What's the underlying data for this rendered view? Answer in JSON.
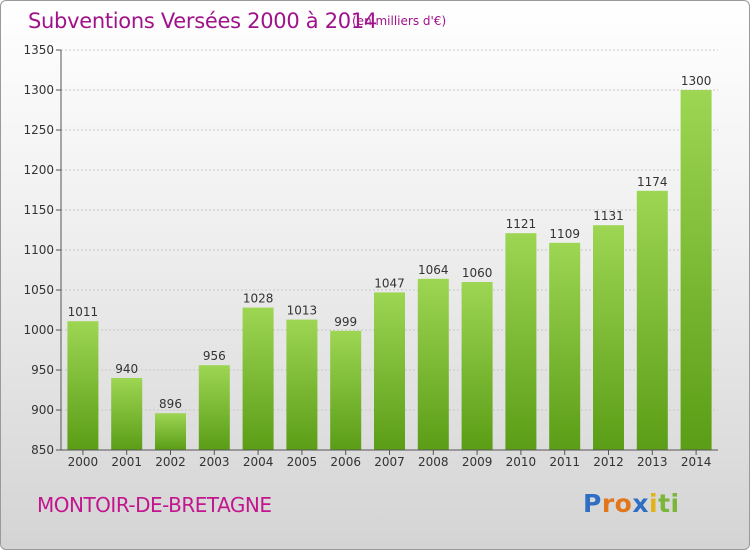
{
  "title": "Subventions Versées 2000 à 2014",
  "subtitle": "(en milliers d'€)",
  "commune": "MONTOIR-DE-BRETAGNE",
  "logo": {
    "letters": [
      "P",
      "r",
      "o",
      "x",
      "i",
      "t",
      "i"
    ],
    "colors": [
      "#2f6fc3",
      "#e2761c",
      "#e2761c",
      "#2f6fc3",
      "#e1b318",
      "#7bb63a",
      "#7bb63a"
    ]
  },
  "colors": {
    "bar_top": "#9dd653",
    "bar_bottom": "#5b9d16",
    "title": "#a0128a",
    "commune": "#c2158e"
  },
  "chart_data": {
    "type": "bar",
    "title": "Subventions Versées 2000 à 2014",
    "ylabel": "",
    "xlabel": "",
    "ylim": [
      850,
      1350
    ],
    "yticks": [
      850,
      900,
      950,
      1000,
      1050,
      1100,
      1150,
      1200,
      1250,
      1300,
      1350
    ],
    "grid": true,
    "categories": [
      "2000",
      "2001",
      "2002",
      "2003",
      "2004",
      "2005",
      "2006",
      "2007",
      "2008",
      "2009",
      "2010",
      "2011",
      "2012",
      "2013",
      "2014"
    ],
    "values": [
      1011,
      940,
      896,
      956,
      1028,
      1013,
      999,
      1047,
      1064,
      1060,
      1121,
      1109,
      1131,
      1174,
      1300
    ]
  }
}
